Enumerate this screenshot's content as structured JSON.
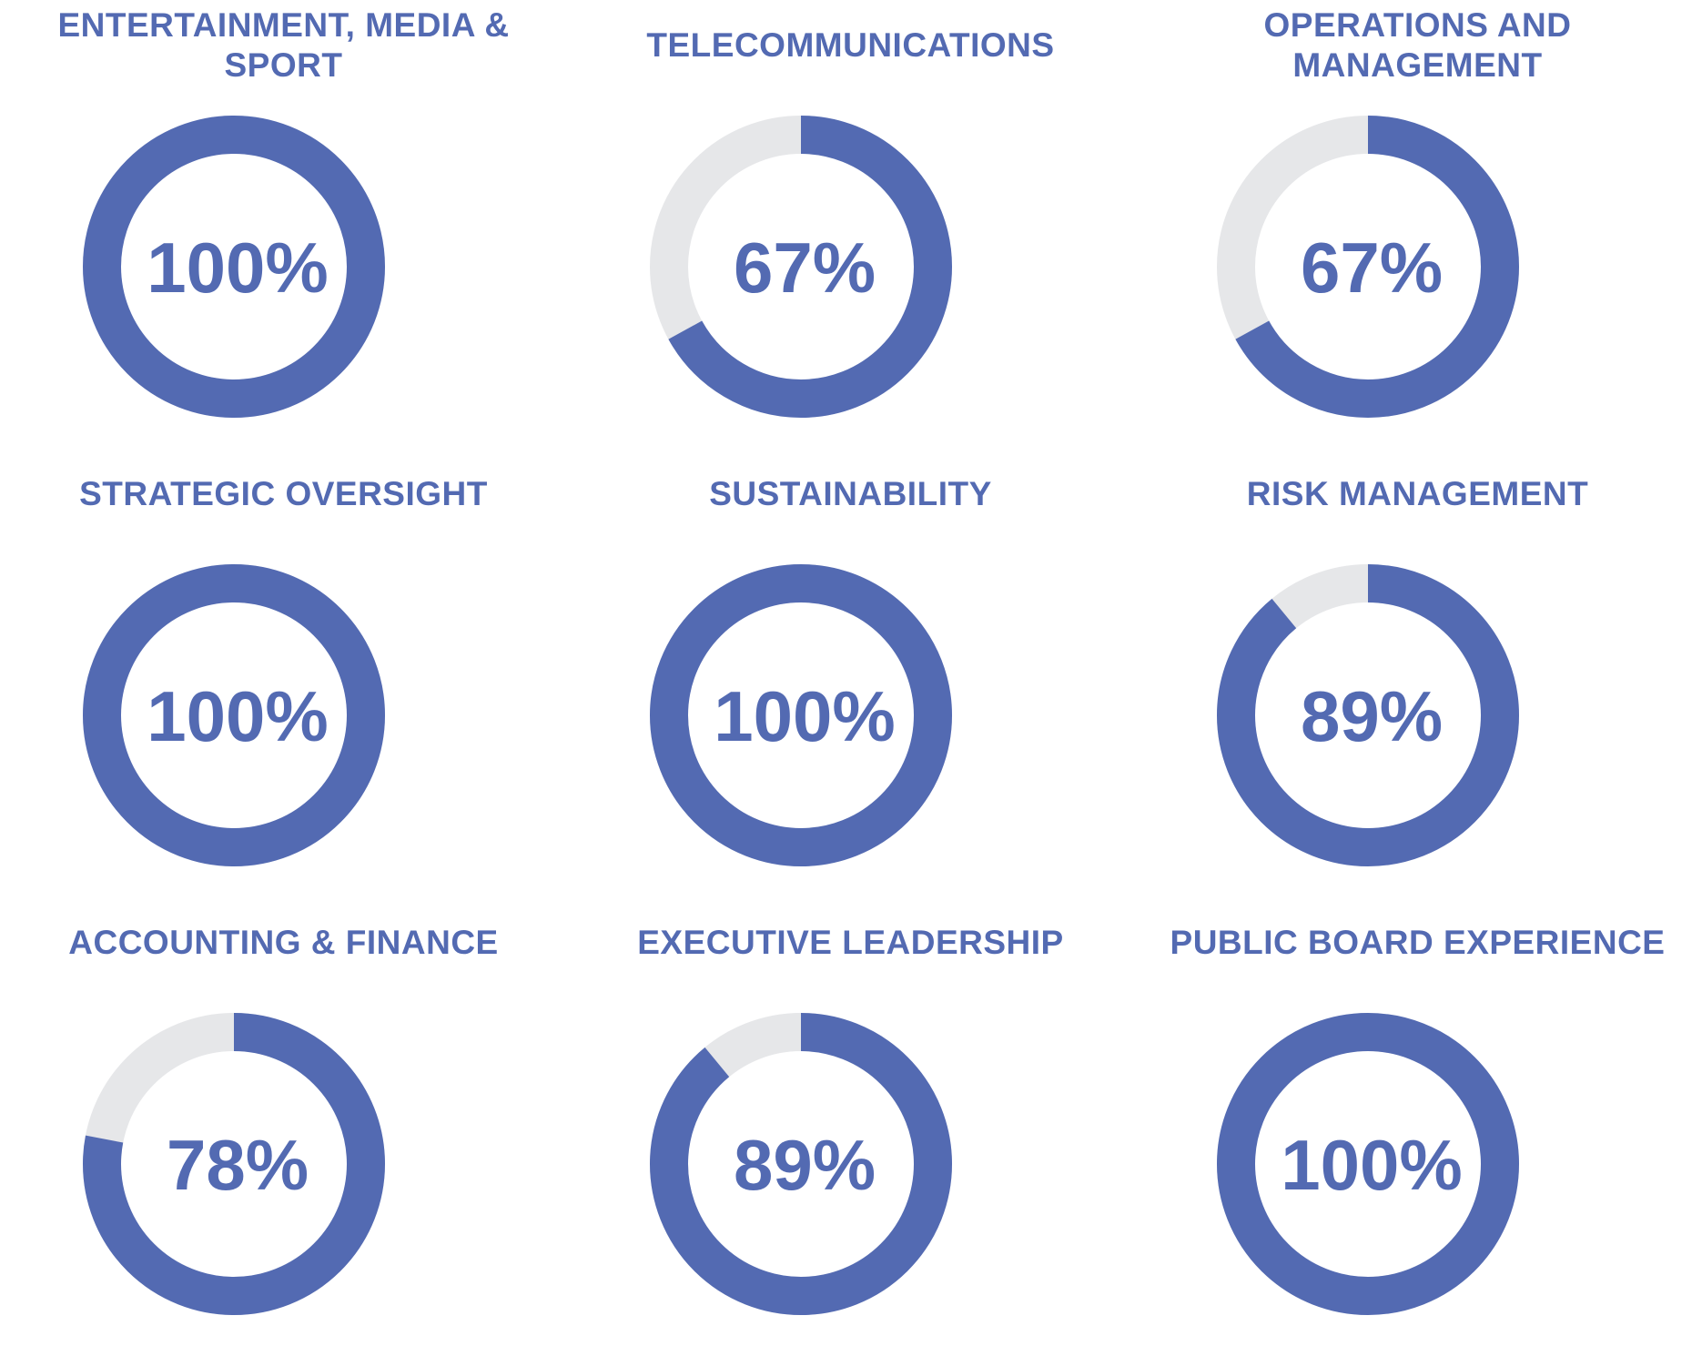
{
  "colors": {
    "accent": "#536AB2",
    "track": "#E6E7E9",
    "background": "#FFFFFF"
  },
  "chart_data": {
    "type": "donut",
    "unit": "%",
    "max": 100,
    "panels": [
      {
        "title": "ENTERTAINMENT, MEDIA &\nSPORT",
        "value": 100,
        "label": "100%"
      },
      {
        "title": "TELECOMMUNICATIONS",
        "value": 67,
        "label": "67%"
      },
      {
        "title": "OPERATIONS AND\nMANAGEMENT",
        "value": 67,
        "label": "67%"
      },
      {
        "title": "STRATEGIC OVERSIGHT",
        "value": 100,
        "label": "100%"
      },
      {
        "title": "SUSTAINABILITY",
        "value": 100,
        "label": "100%"
      },
      {
        "title": "RISK MANAGEMENT",
        "value": 89,
        "label": "89%"
      },
      {
        "title": "ACCOUNTING & FINANCE",
        "value": 78,
        "label": "78%"
      },
      {
        "title": "EXECUTIVE LEADERSHIP",
        "value": 89,
        "label": "89%"
      },
      {
        "title": "PUBLIC BOARD EXPERIENCE",
        "value": 100,
        "label": "100%"
      }
    ]
  }
}
